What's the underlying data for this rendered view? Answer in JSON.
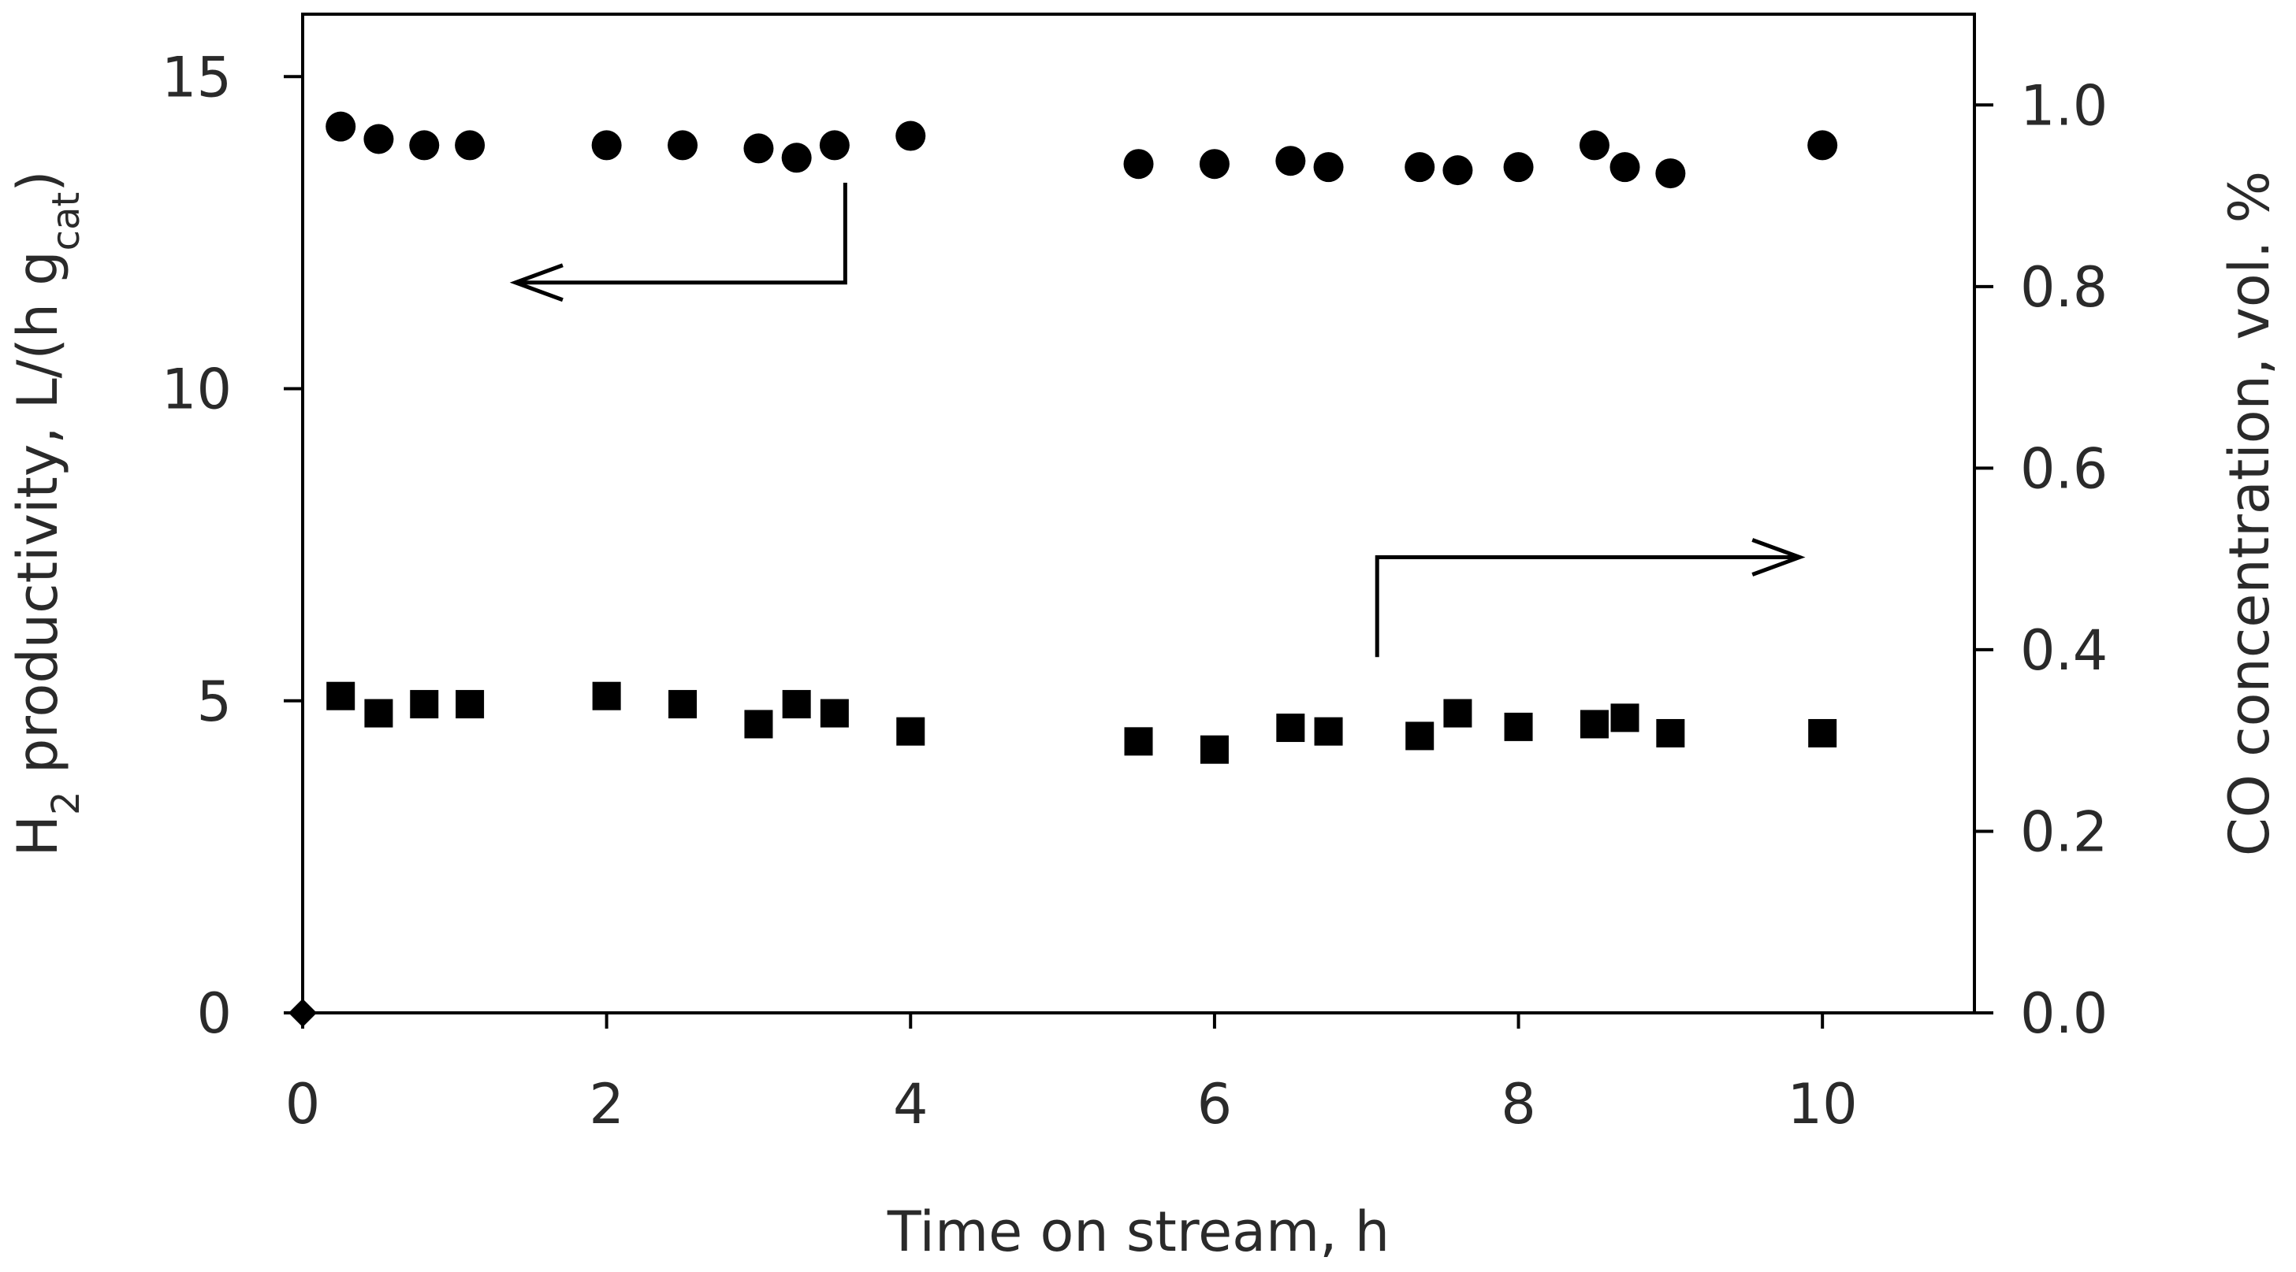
{
  "chart_data": {
    "type": "scatter",
    "xlabel": "Time on stream, h",
    "ylabel_left": {
      "main": "H",
      "sub1": "2",
      "mid": " productivity, L/(h g",
      "sub2": "cat",
      "end": ")"
    },
    "ylabel_right": "CO concentration, vol. %",
    "xlim": [
      0,
      11
    ],
    "ylim_left": [
      0,
      16
    ],
    "ylim_right": [
      0,
      1.1
    ],
    "x_ticks": [
      "0",
      "2",
      "4",
      "6",
      "8",
      "10"
    ],
    "y_left_ticks": [
      "0",
      "5",
      "10",
      "15"
    ],
    "y_right_ticks": [
      "0.0",
      "0.2",
      "0.4",
      "0.6",
      "0.8",
      "1.0"
    ],
    "grid": false,
    "series": [
      {
        "marker": "circle",
        "axis": "left",
        "color": "#000000",
        "x": [
          0.25,
          0.5,
          0.8,
          1.1,
          2.0,
          2.5,
          3.0,
          3.25,
          3.5,
          4.0,
          5.5,
          6.0,
          6.5,
          6.75,
          7.35,
          7.6,
          8.0,
          8.5,
          8.7,
          9.0,
          10.0
        ],
        "y": [
          14.2,
          14.0,
          13.9,
          13.9,
          13.9,
          13.9,
          13.85,
          13.7,
          13.9,
          14.05,
          13.6,
          13.6,
          13.65,
          13.55,
          13.55,
          13.5,
          13.55,
          13.9,
          13.55,
          13.45,
          13.9
        ]
      },
      {
        "marker": "square",
        "axis": "right",
        "color": "#000000",
        "x": [
          0.25,
          0.5,
          0.8,
          1.1,
          2.0,
          2.5,
          3.0,
          3.25,
          3.5,
          4.0,
          5.5,
          6.0,
          6.5,
          6.75,
          7.35,
          7.6,
          8.0,
          8.5,
          8.7,
          9.0,
          10.0
        ],
        "y": [
          0.349,
          0.33,
          0.34,
          0.34,
          0.349,
          0.34,
          0.318,
          0.34,
          0.33,
          0.31,
          0.299,
          0.29,
          0.314,
          0.31,
          0.305,
          0.33,
          0.315,
          0.318,
          0.325,
          0.308,
          0.308
        ]
      },
      {
        "marker": "diamond",
        "axis": "left",
        "color": "#000000",
        "x": [
          0
        ],
        "y": [
          0
        ]
      }
    ],
    "annotations": [
      {
        "kind": "arrow",
        "points_to": "left-axis",
        "start": [
          3.57,
          13.3
        ],
        "corner": [
          3.57,
          11.7
        ],
        "end": [
          1.4,
          11.7
        ]
      },
      {
        "kind": "arrow",
        "points_to": "right-axis",
        "start": [
          7.07,
          5.7
        ],
        "corner": [
          7.07,
          7.3
        ],
        "end": [
          9.85,
          7.3
        ]
      }
    ]
  }
}
